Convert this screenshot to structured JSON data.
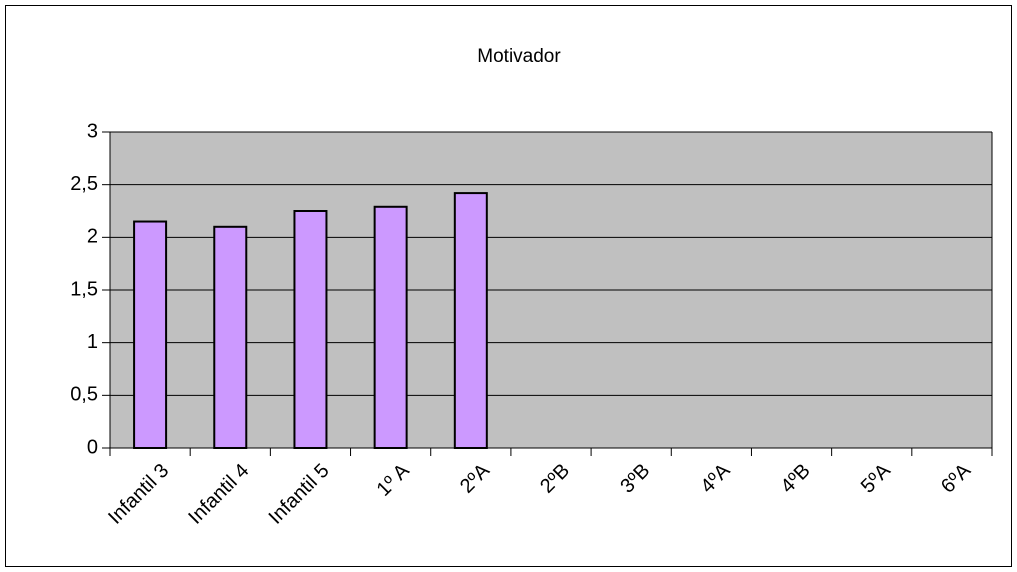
{
  "chart_data": {
    "type": "bar",
    "title": "Motivador",
    "categories": [
      "Infantil 3",
      "Infantil 4",
      "Infantil 5",
      "1º A",
      "2ºA",
      "2ºB",
      "3ºB",
      "4ºA",
      "4ºB",
      "5ºA",
      "6ºA"
    ],
    "values": [
      2.15,
      2.1,
      2.25,
      2.29,
      2.42,
      null,
      null,
      null,
      null,
      null,
      null
    ],
    "color": "#cc99ff",
    "ylim": [
      0,
      3
    ],
    "yticks": [
      0,
      {
        "value": 0.5,
        "label": "0,5"
      },
      1,
      {
        "value": 1.5,
        "label": "1,5"
      },
      2,
      {
        "value": 2.5,
        "label": "2,5"
      },
      3
    ],
    "grid": true
  }
}
